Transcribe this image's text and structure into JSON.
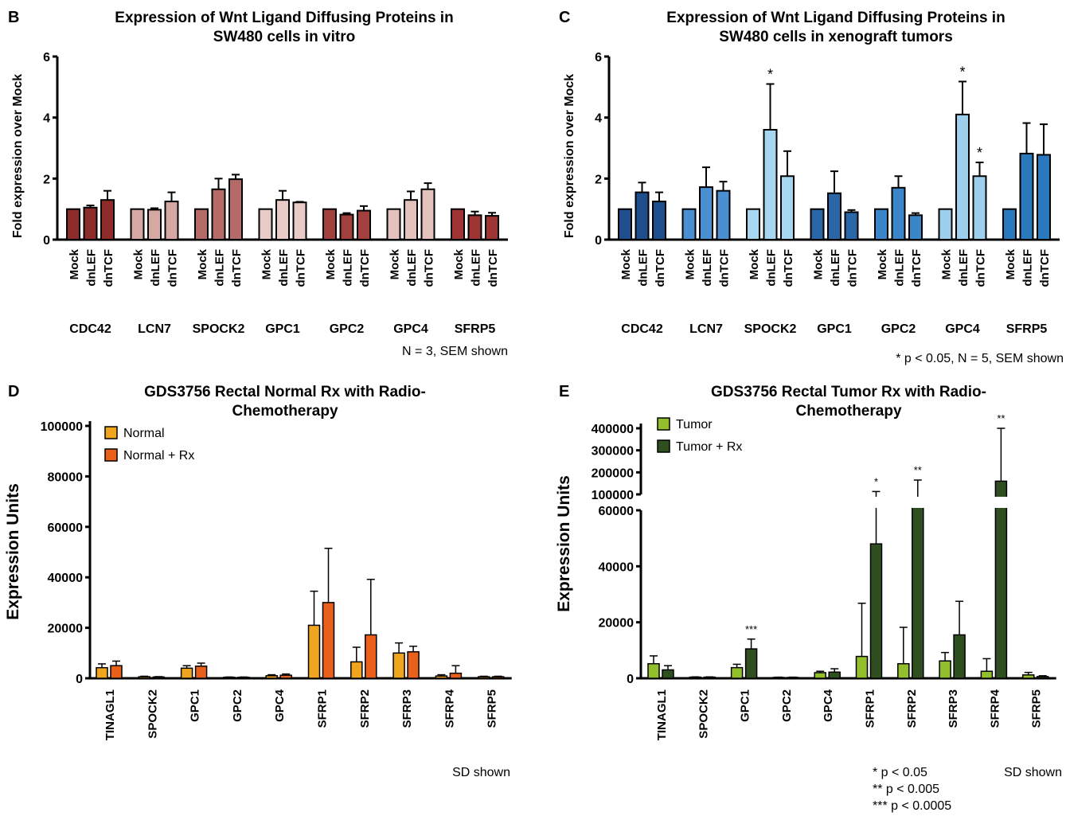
{
  "chart_data": [
    {
      "panel": "B",
      "type": "bar",
      "title": "Expression of Wnt Ligand Diffusing Proteins in SW480 cells in vitro",
      "xlabel": "",
      "ylabel": "Fold expression over Mock",
      "ylim": [
        0,
        6
      ],
      "yticks": [
        0,
        2,
        4,
        6
      ],
      "conditions": [
        "Mock",
        "dnLEF",
        "dnTCF"
      ],
      "groups": [
        {
          "name": "CDC42",
          "color": "#8e2b2b",
          "values": [
            1.0,
            1.05,
            1.3
          ],
          "errors": [
            0.0,
            0.07,
            0.3
          ]
        },
        {
          "name": "LCN7",
          "color": "#d5a8a3",
          "values": [
            1.0,
            0.98,
            1.25
          ],
          "errors": [
            0.0,
            0.05,
            0.3
          ]
        },
        {
          "name": "SPOCK2",
          "color": "#b56c68",
          "values": [
            1.0,
            1.65,
            1.98
          ],
          "errors": [
            0.0,
            0.35,
            0.15
          ]
        },
        {
          "name": "GPC1",
          "color": "#e9cbc7",
          "values": [
            1.0,
            1.3,
            1.22
          ],
          "errors": [
            0.0,
            0.3,
            0.02
          ]
        },
        {
          "name": "GPC2",
          "color": "#a1403d",
          "values": [
            1.0,
            0.82,
            0.95
          ],
          "errors": [
            0.0,
            0.05,
            0.15
          ]
        },
        {
          "name": "GPC4",
          "color": "#e3c2be",
          "values": [
            1.0,
            1.3,
            1.65
          ],
          "errors": [
            0.0,
            0.28,
            0.2
          ]
        },
        {
          "name": "SFRP5",
          "color": "#9e3433",
          "values": [
            1.0,
            0.8,
            0.78
          ],
          "errors": [
            0.0,
            0.12,
            0.1
          ]
        }
      ],
      "annotations": [],
      "footnote": "N = 3, SEM shown"
    },
    {
      "panel": "C",
      "type": "bar",
      "title": "Expression of Wnt Ligand Diffusing Proteins in SW480 cells in xenograft tumors",
      "xlabel": "",
      "ylabel": "Fold expression over Mock",
      "ylim": [
        0,
        6
      ],
      "yticks": [
        0,
        2,
        4,
        6
      ],
      "conditions": [
        "Mock",
        "dnLEF",
        "dnTCF"
      ],
      "groups": [
        {
          "name": "CDC42",
          "color": "#1f4e8c",
          "values": [
            1.0,
            1.55,
            1.25
          ],
          "errors": [
            0.0,
            0.32,
            0.3
          ]
        },
        {
          "name": "LCN7",
          "color": "#4a90d0",
          "values": [
            1.0,
            1.72,
            1.6
          ],
          "errors": [
            0.0,
            0.65,
            0.3
          ]
        },
        {
          "name": "SPOCK2",
          "color": "#a7d6f0",
          "values": [
            1.0,
            3.6,
            2.08
          ],
          "errors": [
            0.0,
            1.5,
            0.82
          ]
        },
        {
          "name": "GPC1",
          "color": "#2a66a8",
          "values": [
            1.0,
            1.52,
            0.9
          ],
          "errors": [
            0.0,
            0.72,
            0.07
          ]
        },
        {
          "name": "GPC2",
          "color": "#3a86c8",
          "values": [
            1.0,
            1.7,
            0.8
          ],
          "errors": [
            0.0,
            0.38,
            0.07
          ]
        },
        {
          "name": "GPC4",
          "color": "#9ed0ee",
          "values": [
            1.0,
            4.1,
            2.08
          ],
          "errors": [
            0.0,
            1.08,
            0.45
          ]
        },
        {
          "name": "SFRP5",
          "color": "#2b79bd",
          "values": [
            1.0,
            2.82,
            2.78
          ],
          "errors": [
            0.0,
            1.0,
            1.0
          ]
        }
      ],
      "annotations": [
        {
          "group": "SPOCK2",
          "bar": 1,
          "text": "*"
        },
        {
          "group": "GPC4",
          "bar": 1,
          "text": "*"
        },
        {
          "group": "GPC4",
          "bar": 2,
          "text": "*"
        }
      ],
      "footnote": "* p < 0.05, N = 5, SEM shown"
    },
    {
      "panel": "D",
      "type": "bar",
      "title": "GDS3756 Rectal Normal Rx with Radio-Chemotherapy",
      "xlabel": "",
      "ylabel": "Expression Units",
      "ylim": [
        0,
        100000
      ],
      "yticks": [
        0,
        20000,
        40000,
        60000,
        80000,
        100000
      ],
      "categories": [
        "TINAGL1",
        "SPOCK2",
        "GPC1",
        "GPC2",
        "GPC4",
        "SFRP1",
        "SFRP2",
        "SFRP3",
        "SFRP4",
        "SFRP5"
      ],
      "series": [
        {
          "name": "Normal",
          "color": "#f0a51f",
          "values": [
            4200,
            600,
            4000,
            400,
            1000,
            21000,
            6500,
            10000,
            900,
            600
          ],
          "errors": [
            1500,
            200,
            1000,
            100,
            400,
            13500,
            5800,
            4000,
            500,
            200
          ]
        },
        {
          "name": "Normal + Rx",
          "color": "#e8601c",
          "values": [
            5000,
            500,
            4800,
            400,
            1200,
            30000,
            17200,
            10500,
            2000,
            600
          ],
          "errors": [
            1800,
            150,
            1200,
            100,
            500,
            21500,
            22000,
            2200,
            3000,
            200
          ]
        }
      ],
      "legend_position": "top-left",
      "footnote": "SD shown"
    },
    {
      "panel": "E",
      "type": "bar",
      "title": "GDS3756 Rectal Tumor Rx with Radio-Chemotherapy",
      "xlabel": "",
      "ylabel": "Expression Units",
      "ylim": [
        0,
        400000
      ],
      "broken_axis": {
        "lower": [
          0,
          60000
        ],
        "upper": [
          100000,
          400000
        ]
      },
      "yticks_lower": [
        0,
        20000,
        40000,
        60000
      ],
      "yticks_upper": [
        100000,
        200000,
        300000,
        400000
      ],
      "categories": [
        "TINAGL1",
        "SPOCK2",
        "GPC1",
        "GPC2",
        "GPC4",
        "SFRP1",
        "SFRP2",
        "SFRP3",
        "SFRP4",
        "SFRP5"
      ],
      "series": [
        {
          "name": "Tumor",
          "color": "#93bf2c",
          "values": [
            5200,
            400,
            3800,
            300,
            2000,
            7800,
            5200,
            6200,
            2500,
            1200
          ],
          "errors": [
            2800,
            100,
            1200,
            100,
            500,
            19000,
            13000,
            3000,
            4500,
            900
          ]
        },
        {
          "name": "Tumor + Rx",
          "color": "#2f4f20",
          "values": [
            3000,
            400,
            10500,
            300,
            2200,
            48000,
            70000,
            15500,
            160000,
            600
          ],
          "errors": [
            1500,
            100,
            3500,
            100,
            1200,
            65000,
            95000,
            12000,
            240000,
            300
          ]
        }
      ],
      "annotations": [
        {
          "category": "GPC1",
          "series": 1,
          "text": "***"
        },
        {
          "category": "SFRP1",
          "series": 1,
          "text": "*"
        },
        {
          "category": "SFRP2",
          "series": 1,
          "text": "**"
        },
        {
          "category": "SFRP4",
          "series": 1,
          "text": "**"
        }
      ],
      "legend_position": "top-left",
      "footnote": "SD shown",
      "significance_legend": [
        "* p < 0.05",
        "** p < 0.005",
        "*** p < 0.0005"
      ]
    }
  ],
  "panel_letters": [
    "B",
    "C",
    "D",
    "E"
  ],
  "title_lines": {
    "B": [
      "Expression of Wnt Ligand Diffusing Proteins in",
      "SW480 cells in vitro"
    ],
    "C": [
      "Expression of Wnt Ligand Diffusing Proteins in",
      "SW480 cells in xenograft tumors"
    ],
    "D": [
      "GDS3756 Rectal Normal Rx with Radio-",
      "Chemotherapy"
    ],
    "E": [
      "GDS3756 Rectal Tumor Rx with Radio-",
      "Chemotherapy"
    ]
  }
}
